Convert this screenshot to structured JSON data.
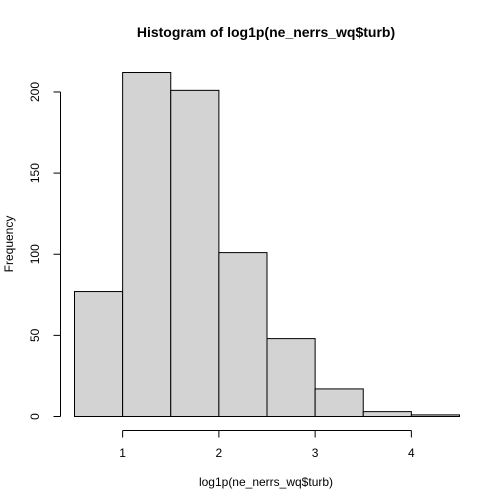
{
  "chart_data": {
    "type": "bar",
    "title": "Histogram of log1p(ne_nerrs_wq$turb)",
    "xlabel": "log1p(ne_nerrs_wq$turb)",
    "ylabel": "Frequency",
    "bins": [
      {
        "start": 0.5,
        "end": 1.0,
        "value": 77
      },
      {
        "start": 1.0,
        "end": 1.5,
        "value": 212
      },
      {
        "start": 1.5,
        "end": 2.0,
        "value": 201
      },
      {
        "start": 2.0,
        "end": 2.5,
        "value": 101
      },
      {
        "start": 2.5,
        "end": 3.0,
        "value": 48
      },
      {
        "start": 3.0,
        "end": 3.5,
        "value": 17
      },
      {
        "start": 3.5,
        "end": 4.0,
        "value": 3
      },
      {
        "start": 4.0,
        "end": 4.5,
        "value": 1
      }
    ],
    "xlim": [
      0.5,
      4.5
    ],
    "ylim": [
      0,
      212
    ],
    "x_ticks": [
      1,
      2,
      3,
      4
    ],
    "y_ticks": [
      0,
      50,
      100,
      150,
      200
    ],
    "bar_color": "#d3d3d3",
    "bar_border_color": "#000000",
    "grid": false,
    "legend": "none"
  }
}
